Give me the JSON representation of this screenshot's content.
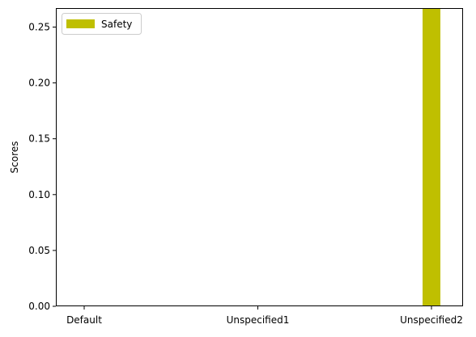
{
  "chart_data": {
    "type": "bar",
    "categories": [
      "Default",
      "Unspecified1",
      "Unspecified2"
    ],
    "series": [
      {
        "name": "Safety",
        "values": [
          0,
          0,
          0.27
        ],
        "color": "#bfbf00"
      }
    ],
    "ylabel": "Scores",
    "xlabel": "",
    "ylim": [
      0,
      0.267
    ],
    "yticks": [
      0.0,
      0.05,
      0.1,
      0.15,
      0.2,
      0.25
    ],
    "ytick_labels": [
      "0.00",
      "0.05",
      "0.10",
      "0.15",
      "0.20",
      "0.25"
    ],
    "grid": false,
    "legend_position": "upper-left"
  }
}
